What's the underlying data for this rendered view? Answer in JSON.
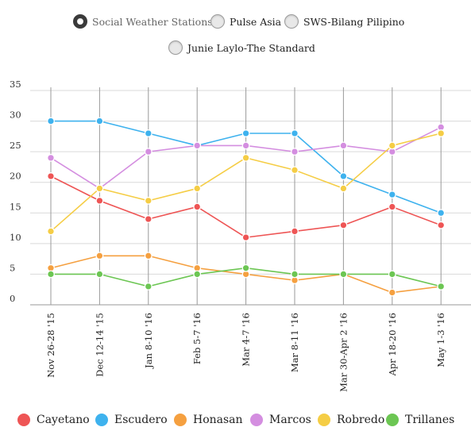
{
  "selector": {
    "options": [
      {
        "label": "Social Weather Stations",
        "selected": true
      },
      {
        "label": "Pulse Asia",
        "selected": false
      },
      {
        "label": "SWS-Bilang Pilipino",
        "selected": false
      },
      {
        "label": "Junie Laylo-The Standard",
        "selected": false
      }
    ]
  },
  "chart_data": {
    "type": "line",
    "categories": [
      "Nov 26-28 '15",
      "Dec 12-14 '15",
      "Jan 8-10 '16",
      "Feb 5-7 '16",
      "Mar 4-7 '16",
      "Mar 8-11 '16",
      "Mar 30-Apr 2 '16",
      "Apr 18-20 '16",
      "May 1-3 '16"
    ],
    "y_ticks": [
      "0",
      "5",
      "10",
      "15",
      "20",
      "25",
      "30",
      "35"
    ],
    "ylim": [
      0,
      35
    ],
    "grid": "vertical lines at categories, horizontal lines at y ticks",
    "legend_position": "bottom",
    "series": [
      {
        "name": "Cayetano",
        "color": "#ee5555",
        "values": [
          21,
          17,
          14,
          16,
          11,
          12,
          13,
          16,
          13
        ]
      },
      {
        "name": "Escudero",
        "color": "#3eb2ee",
        "values": [
          30,
          30,
          28,
          26,
          28,
          28,
          21,
          18,
          15
        ]
      },
      {
        "name": "Honasan",
        "color": "#f5a040",
        "values": [
          6,
          8,
          8,
          6,
          5,
          4,
          5,
          2,
          3
        ]
      },
      {
        "name": "Marcos",
        "color": "#d48ee0",
        "values": [
          24,
          19,
          25,
          26,
          26,
          25,
          26,
          25,
          29
        ]
      },
      {
        "name": "Robredo",
        "color": "#f5cd45",
        "values": [
          12,
          19,
          17,
          19,
          24,
          22,
          19,
          26,
          28
        ]
      },
      {
        "name": "Trillanes",
        "color": "#6cc653",
        "values": [
          5,
          5,
          3,
          5,
          6,
          5,
          5,
          5,
          3
        ]
      }
    ]
  }
}
